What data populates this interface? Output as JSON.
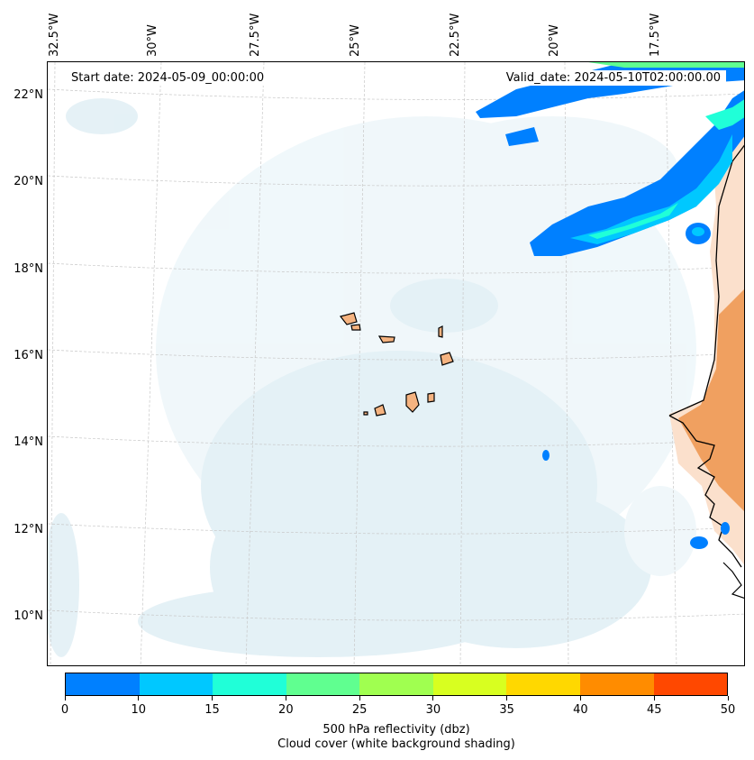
{
  "map": {
    "start_date": "Start date: 2024-05-09_00:00:00",
    "valid_date": "Valid_date: 2024-05-10T02:00:00.00",
    "lon_labels": [
      "32.5°W",
      "30°W",
      "27.5°W",
      "25°W",
      "22.5°W",
      "20°W",
      "17.5°W"
    ],
    "lat_labels": [
      "22°N",
      "20°N",
      "18°N",
      "16°N",
      "14°N",
      "12°N",
      "10°N"
    ],
    "ocean_color": "#ffffff",
    "cloud_color": "#cfe6ef",
    "land_color": "#f0a060",
    "coastline_color": "#000000"
  },
  "colorbar": {
    "ticks": [
      "0",
      "10",
      "15",
      "20",
      "25",
      "30",
      "35",
      "40",
      "45",
      "50"
    ],
    "colors": [
      "#0080ff",
      "#00c8ff",
      "#20ffd8",
      "#60ff90",
      "#a0ff50",
      "#d8ff20",
      "#ffd800",
      "#ff8c00",
      "#ff4800"
    ],
    "label_line1": "500 hPa reflectivity (dbz)",
    "label_line2": "Cloud cover (white background shading)"
  }
}
